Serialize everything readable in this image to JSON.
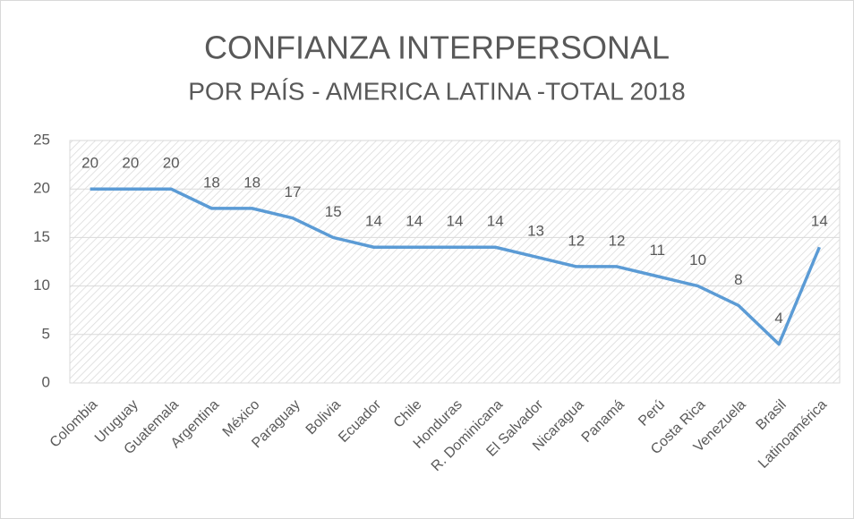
{
  "chart_data": {
    "type": "line",
    "title": "CONFIANZA INTERPERSONAL",
    "subtitle": "POR PAÍS - AMERICA LATINA -TOTAL 2018",
    "categories": [
      "Colombia",
      "Uruguay",
      "Guatemala",
      "Argentina",
      "México",
      "Paraguay",
      "Bolivia",
      "Ecuador",
      "Chile",
      "Honduras",
      "R. Dominicana",
      "El Salvador",
      "Nicaragua",
      "Panamá",
      "Perú",
      "Costa Rica",
      "Venezuela",
      "Brasil",
      "Latinoamérica"
    ],
    "values": [
      20,
      20,
      20,
      18,
      18,
      17,
      15,
      14,
      14,
      14,
      14,
      13,
      12,
      12,
      11,
      10,
      8,
      4,
      14
    ],
    "color": "#5b9bd5",
    "ylim": [
      0,
      25
    ],
    "yticks": [
      0,
      5,
      10,
      15,
      20,
      25
    ],
    "grid": true
  }
}
